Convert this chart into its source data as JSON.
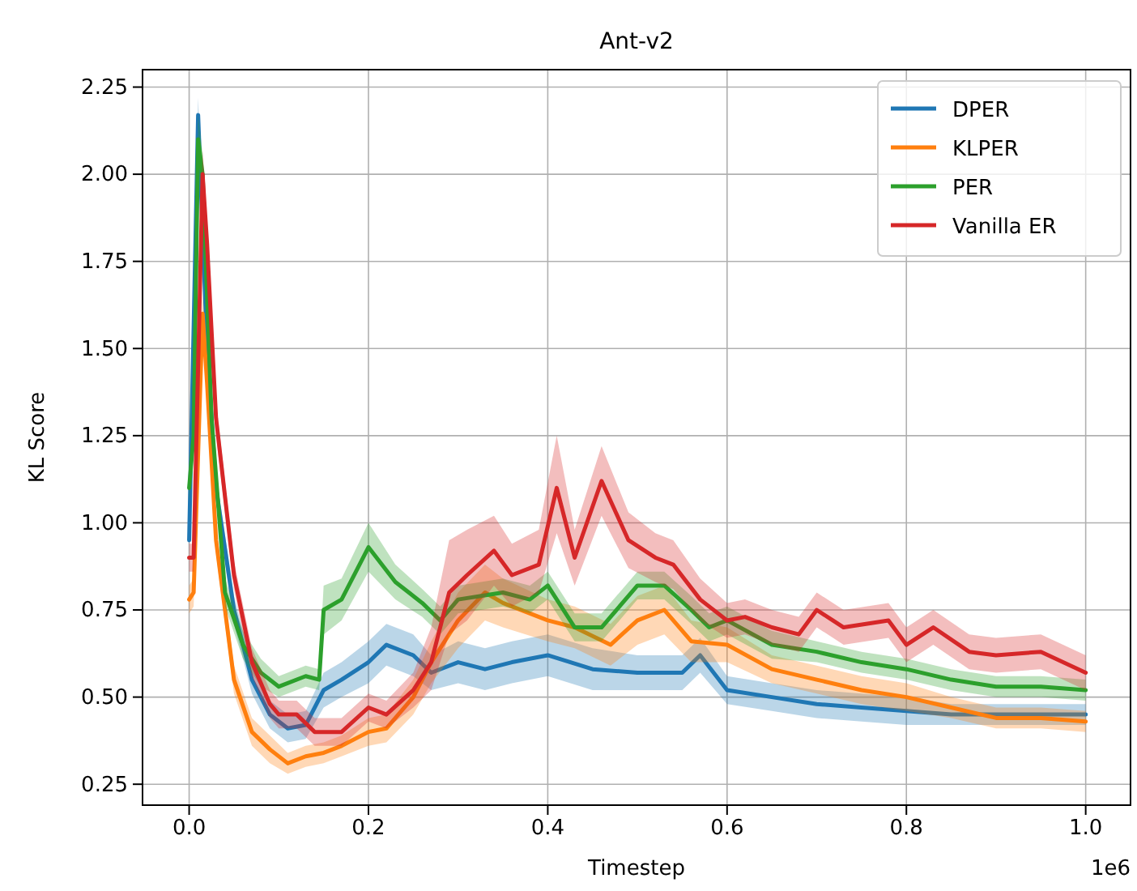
{
  "chart_data": {
    "type": "line",
    "title": "Ant-v2",
    "xlabel": "Timestep",
    "ylabel": "KL Score",
    "annotations": [
      "1e6"
    ],
    "xlim": [
      -0.052,
      1.05
    ],
    "ylim": [
      0.19,
      2.3
    ],
    "xticks": [
      {
        "value": 0,
        "label": "0.0"
      },
      {
        "value": 0.2,
        "label": "0.2"
      },
      {
        "value": 0.4,
        "label": "0.4"
      },
      {
        "value": 0.6,
        "label": "0.6"
      },
      {
        "value": 0.8,
        "label": "0.8"
      },
      {
        "value": 1,
        "label": "1.0"
      }
    ],
    "yticks": [
      0.25,
      {
        "value": 0.5,
        "label": "0.50"
      },
      0.75,
      {
        "value": 1,
        "label": "1.00"
      },
      1.25,
      {
        "value": 1.5,
        "label": "1.50"
      },
      1.75,
      {
        "value": 2,
        "label": "2.00"
      },
      2.25
    ],
    "grid": true,
    "legend": "top right",
    "series": [
      {
        "name": "DPER",
        "color": "#1f77b4",
        "x": [
          0,
          0.01,
          0.02,
          0.03,
          0.05,
          0.07,
          0.09,
          0.11,
          0.13,
          0.15,
          0.17,
          0.2,
          0.22,
          0.25,
          0.27,
          0.3,
          0.33,
          0.36,
          0.4,
          0.45,
          0.5,
          0.55,
          0.57,
          0.6,
          0.65,
          0.7,
          0.75,
          0.8,
          0.85,
          0.9,
          0.95,
          1.0
        ],
        "values": [
          0.95,
          2.17,
          1.5,
          1.1,
          0.75,
          0.55,
          0.45,
          0.41,
          0.42,
          0.52,
          0.55,
          0.6,
          0.65,
          0.62,
          0.57,
          0.6,
          0.58,
          0.6,
          0.62,
          0.58,
          0.57,
          0.57,
          0.62,
          0.52,
          0.5,
          0.48,
          0.47,
          0.46,
          0.45,
          0.45,
          0.45,
          0.45
        ],
        "lower": [
          0.91,
          2.1,
          1.45,
          1.06,
          0.71,
          0.51,
          0.41,
          0.37,
          0.38,
          0.47,
          0.5,
          0.54,
          0.59,
          0.56,
          0.52,
          0.54,
          0.52,
          0.54,
          0.56,
          0.52,
          0.52,
          0.52,
          0.57,
          0.48,
          0.46,
          0.44,
          0.43,
          0.42,
          0.42,
          0.42,
          0.42,
          0.42
        ],
        "upper": [
          0.99,
          2.22,
          1.55,
          1.14,
          0.79,
          0.59,
          0.49,
          0.45,
          0.46,
          0.57,
          0.6,
          0.66,
          0.71,
          0.68,
          0.62,
          0.66,
          0.64,
          0.66,
          0.68,
          0.64,
          0.62,
          0.62,
          0.67,
          0.56,
          0.54,
          0.52,
          0.51,
          0.5,
          0.48,
          0.48,
          0.48,
          0.48
        ]
      },
      {
        "name": "KLPER",
        "color": "#ff7f0e",
        "x": [
          0,
          0.005,
          0.015,
          0.02,
          0.03,
          0.05,
          0.07,
          0.09,
          0.11,
          0.13,
          0.15,
          0.17,
          0.2,
          0.22,
          0.25,
          0.27,
          0.3,
          0.33,
          0.35,
          0.4,
          0.43,
          0.47,
          0.5,
          0.53,
          0.56,
          0.6,
          0.65,
          0.7,
          0.75,
          0.8,
          0.85,
          0.9,
          0.95,
          1.0
        ],
        "values": [
          0.78,
          0.8,
          1.6,
          1.4,
          0.95,
          0.55,
          0.4,
          0.35,
          0.31,
          0.33,
          0.34,
          0.36,
          0.4,
          0.41,
          0.5,
          0.6,
          0.72,
          0.8,
          0.77,
          0.72,
          0.7,
          0.65,
          0.72,
          0.75,
          0.66,
          0.65,
          0.58,
          0.55,
          0.52,
          0.5,
          0.47,
          0.44,
          0.44,
          0.43
        ],
        "lower": [
          0.74,
          0.76,
          1.54,
          1.35,
          0.91,
          0.51,
          0.36,
          0.31,
          0.28,
          0.3,
          0.31,
          0.33,
          0.36,
          0.37,
          0.45,
          0.54,
          0.64,
          0.72,
          0.7,
          0.66,
          0.64,
          0.59,
          0.65,
          0.68,
          0.6,
          0.6,
          0.54,
          0.51,
          0.48,
          0.46,
          0.44,
          0.41,
          0.41,
          0.4
        ],
        "upper": [
          0.82,
          0.84,
          1.66,
          1.45,
          0.99,
          0.59,
          0.44,
          0.39,
          0.34,
          0.36,
          0.37,
          0.39,
          0.44,
          0.45,
          0.55,
          0.66,
          0.8,
          0.88,
          0.84,
          0.78,
          0.76,
          0.71,
          0.79,
          0.82,
          0.72,
          0.7,
          0.62,
          0.59,
          0.56,
          0.54,
          0.5,
          0.47,
          0.47,
          0.46
        ]
      },
      {
        "name": "PER",
        "color": "#2ca02c",
        "x": [
          0,
          0.005,
          0.01,
          0.015,
          0.025,
          0.04,
          0.06,
          0.08,
          0.1,
          0.13,
          0.145,
          0.15,
          0.17,
          0.2,
          0.23,
          0.26,
          0.28,
          0.3,
          0.35,
          0.38,
          0.4,
          0.43,
          0.46,
          0.5,
          0.53,
          0.56,
          0.58,
          0.6,
          0.65,
          0.7,
          0.75,
          0.8,
          0.85,
          0.9,
          0.95,
          1.0
        ],
        "values": [
          1.1,
          1.25,
          2.1,
          2.0,
          1.3,
          0.8,
          0.65,
          0.57,
          0.53,
          0.56,
          0.55,
          0.75,
          0.78,
          0.93,
          0.83,
          0.77,
          0.72,
          0.78,
          0.8,
          0.78,
          0.82,
          0.7,
          0.7,
          0.82,
          0.82,
          0.75,
          0.7,
          0.72,
          0.65,
          0.63,
          0.6,
          0.58,
          0.55,
          0.53,
          0.53,
          0.52
        ],
        "lower": [
          1.06,
          1.2,
          2.03,
          1.94,
          1.25,
          0.76,
          0.61,
          0.53,
          0.5,
          0.53,
          0.52,
          0.68,
          0.72,
          0.86,
          0.78,
          0.73,
          0.68,
          0.74,
          0.76,
          0.74,
          0.78,
          0.66,
          0.66,
          0.78,
          0.78,
          0.71,
          0.66,
          0.68,
          0.61,
          0.6,
          0.57,
          0.55,
          0.52,
          0.5,
          0.5,
          0.49
        ],
        "upper": [
          1.14,
          1.3,
          2.17,
          2.06,
          1.35,
          0.84,
          0.69,
          0.61,
          0.56,
          0.59,
          0.58,
          0.82,
          0.84,
          1.0,
          0.88,
          0.81,
          0.76,
          0.82,
          0.84,
          0.82,
          0.86,
          0.74,
          0.74,
          0.86,
          0.86,
          0.79,
          0.74,
          0.76,
          0.69,
          0.66,
          0.63,
          0.61,
          0.58,
          0.56,
          0.56,
          0.55
        ]
      },
      {
        "name": "Vanilla ER",
        "color": "#d62728",
        "x": [
          0,
          0.005,
          0.015,
          0.02,
          0.03,
          0.05,
          0.07,
          0.09,
          0.1,
          0.12,
          0.14,
          0.17,
          0.2,
          0.22,
          0.25,
          0.27,
          0.29,
          0.31,
          0.34,
          0.36,
          0.39,
          0.41,
          0.43,
          0.46,
          0.49,
          0.52,
          0.54,
          0.57,
          0.6,
          0.62,
          0.65,
          0.68,
          0.7,
          0.73,
          0.78,
          0.8,
          0.83,
          0.87,
          0.9,
          0.95,
          1.0
        ],
        "values": [
          0.9,
          0.9,
          2.0,
          1.8,
          1.3,
          0.85,
          0.6,
          0.48,
          0.45,
          0.45,
          0.4,
          0.4,
          0.47,
          0.45,
          0.52,
          0.6,
          0.8,
          0.85,
          0.92,
          0.85,
          0.88,
          1.1,
          0.9,
          1.12,
          0.95,
          0.9,
          0.88,
          0.78,
          0.72,
          0.73,
          0.7,
          0.68,
          0.75,
          0.7,
          0.72,
          0.65,
          0.7,
          0.63,
          0.62,
          0.63,
          0.57
        ],
        "lower": [
          0.86,
          0.86,
          1.93,
          1.74,
          1.25,
          0.81,
          0.56,
          0.44,
          0.41,
          0.41,
          0.36,
          0.36,
          0.43,
          0.41,
          0.47,
          0.52,
          0.68,
          0.72,
          0.82,
          0.76,
          0.8,
          0.97,
          0.82,
          1.02,
          0.87,
          0.83,
          0.81,
          0.72,
          0.67,
          0.68,
          0.65,
          0.63,
          0.7,
          0.65,
          0.67,
          0.6,
          0.65,
          0.58,
          0.57,
          0.58,
          0.52
        ],
        "upper": [
          0.94,
          0.94,
          2.07,
          1.86,
          1.35,
          0.89,
          0.64,
          0.52,
          0.49,
          0.49,
          0.44,
          0.44,
          0.51,
          0.49,
          0.57,
          0.7,
          0.95,
          0.98,
          1.02,
          0.94,
          0.98,
          1.25,
          0.98,
          1.22,
          1.03,
          0.97,
          0.95,
          0.84,
          0.77,
          0.78,
          0.75,
          0.73,
          0.8,
          0.75,
          0.77,
          0.7,
          0.75,
          0.68,
          0.67,
          0.68,
          0.62
        ]
      }
    ]
  }
}
